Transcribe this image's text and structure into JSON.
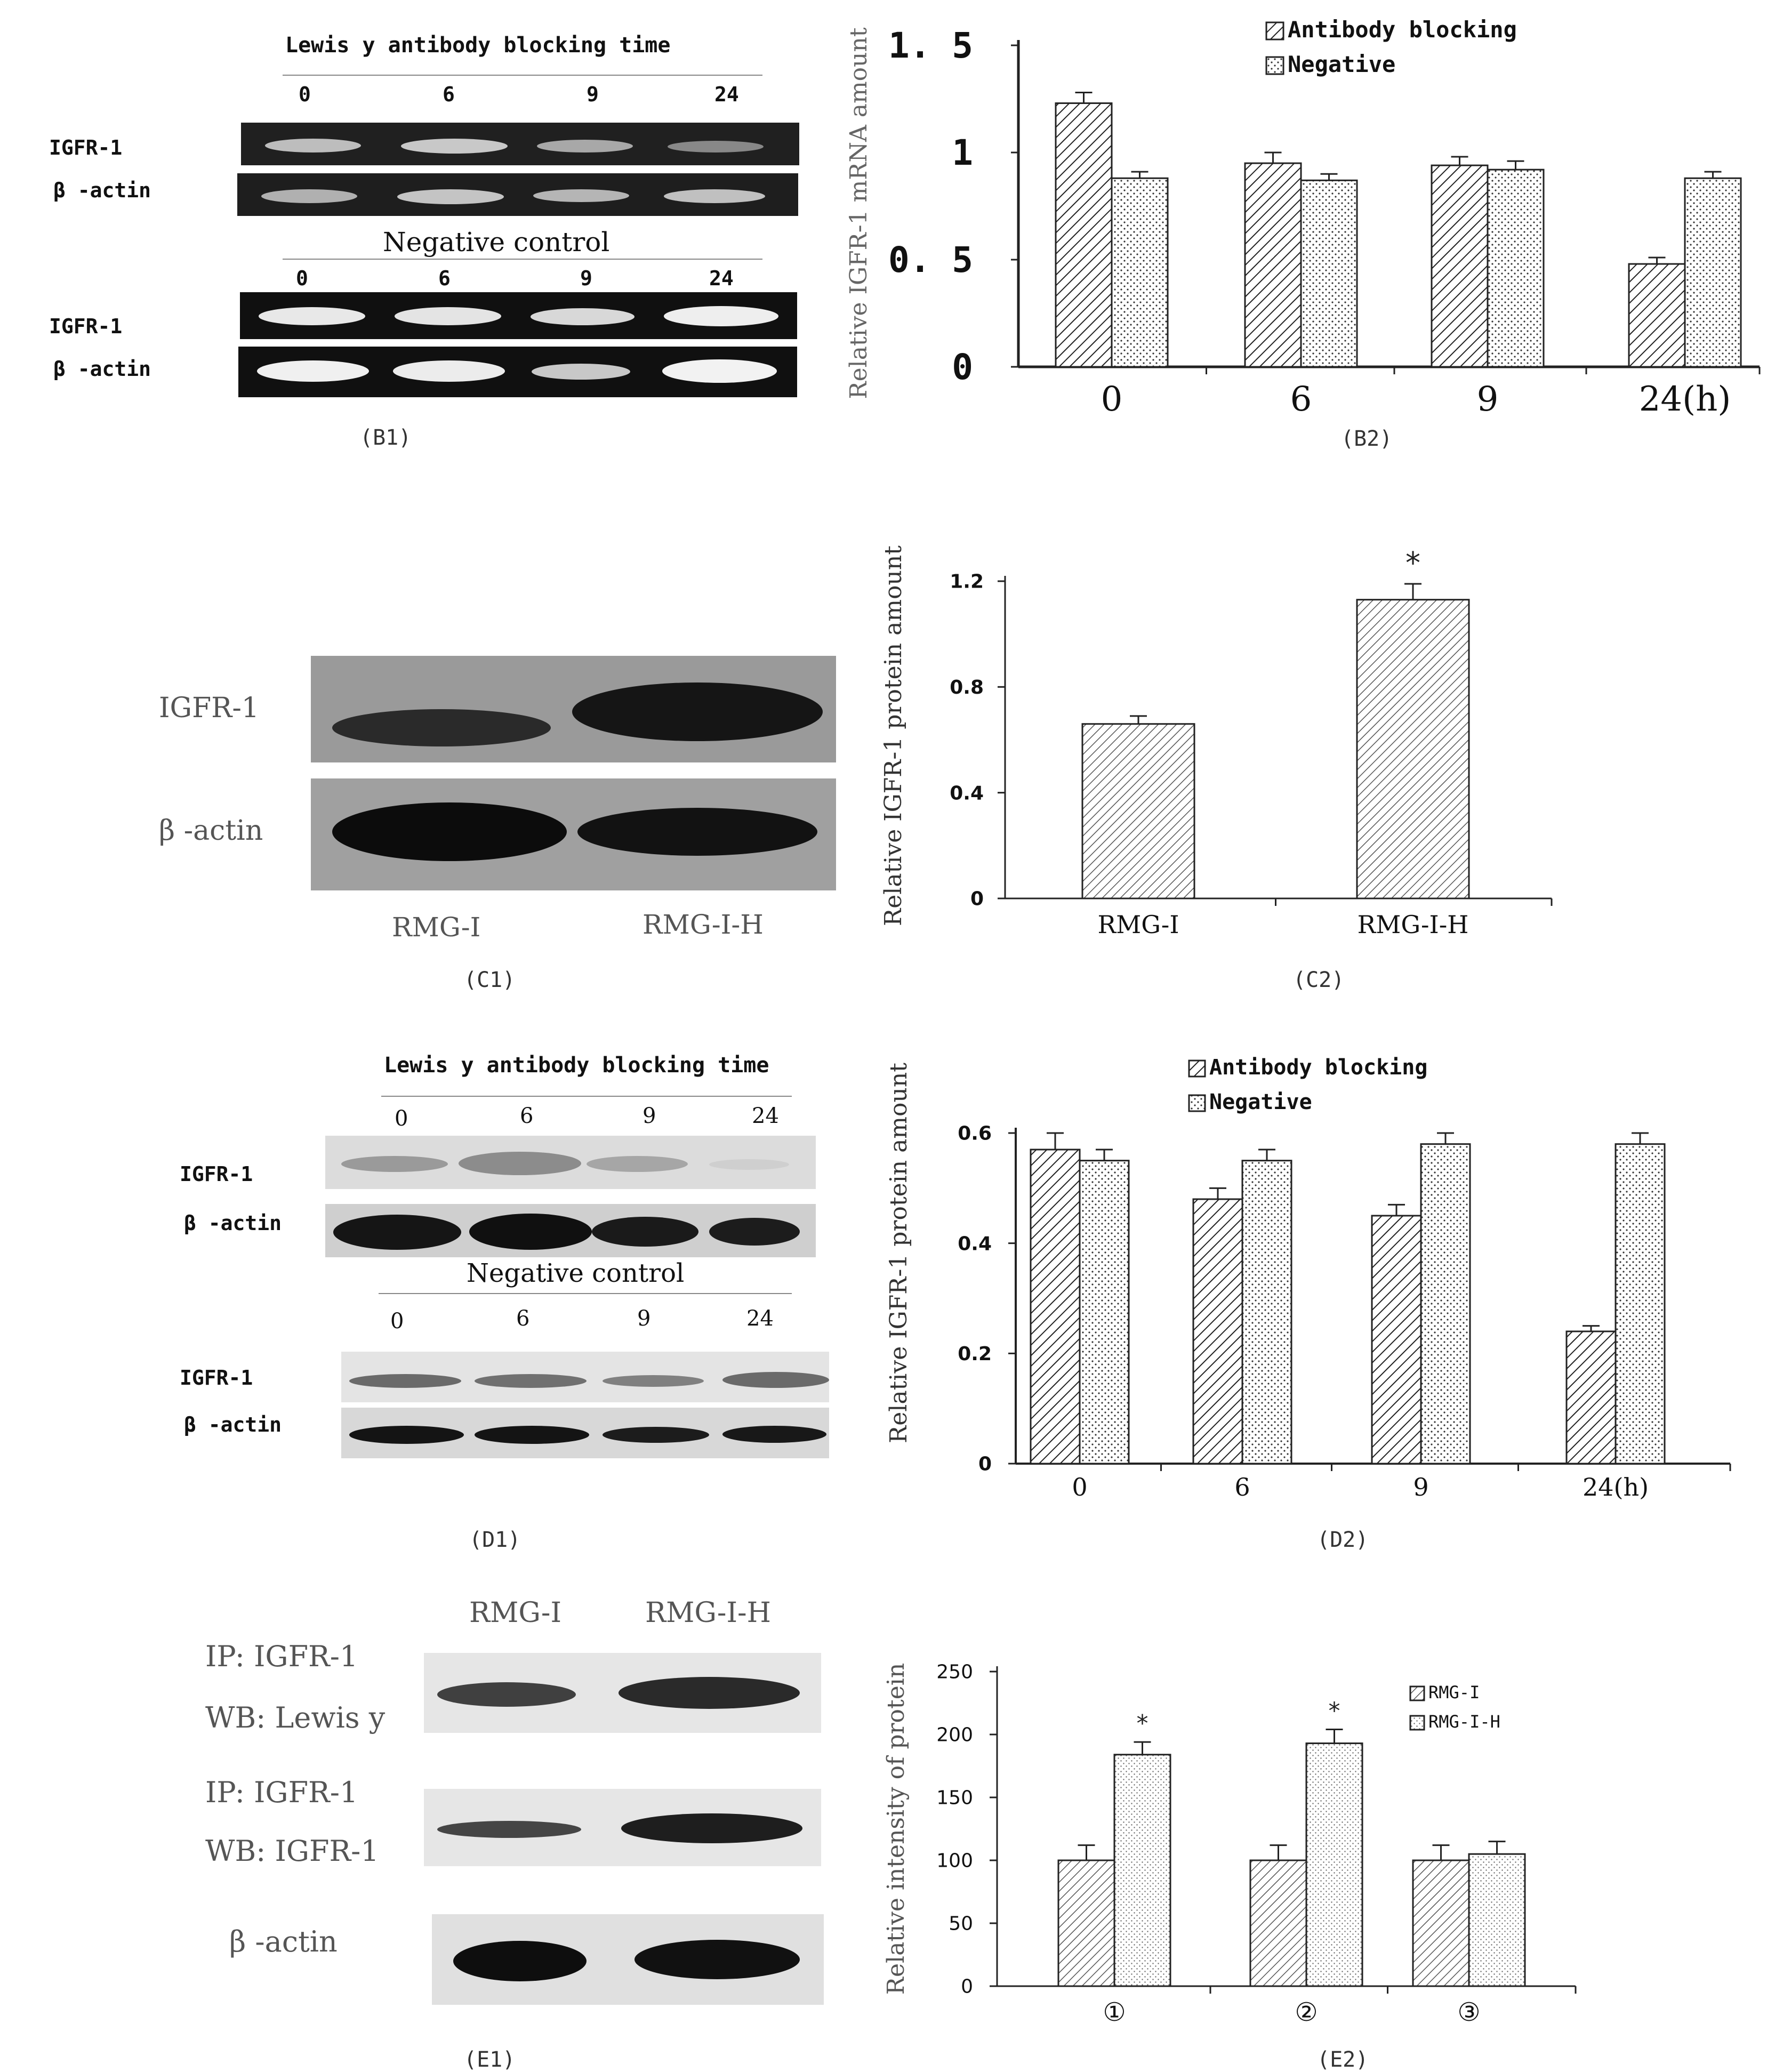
{
  "panelB1": {
    "header": "Lewis y antibody blocking time",
    "times": [
      "0",
      "6",
      "9",
      "24"
    ],
    "rows": [
      "IGFR-1",
      "β -actin"
    ],
    "negative_header": "Negative control",
    "neg_times": [
      "0",
      "6",
      "9",
      "24"
    ],
    "neg_rows": [
      "IGFR-1",
      "β -actin"
    ],
    "caption": "(B1)"
  },
  "panelC1": {
    "rows": [
      "IGFR-1",
      "β -actin"
    ],
    "lanes": [
      "RMG-I",
      "RMG-I-H"
    ],
    "caption": "(C1)"
  },
  "panelD1": {
    "header": "Lewis y antibody blocking time",
    "times": [
      "0",
      "6",
      "9",
      "24"
    ],
    "rows": [
      "IGFR-1",
      "β -actin"
    ],
    "negative_header": "Negative control",
    "neg_times": [
      "0",
      "6",
      "9",
      "24"
    ],
    "neg_rows": [
      "IGFR-1",
      "β -actin"
    ],
    "caption": "(D1)"
  },
  "panelE1": {
    "lanes": [
      "RMG-I",
      "RMG-I-H"
    ],
    "row1_line1": "IP: IGFR-1",
    "row1_line2": "WB: Lewis y",
    "row2_line1": "IP: IGFR-1",
    "row2_line2": "WB: IGFR-1",
    "row3": "β -actin",
    "caption": "(E1)"
  },
  "chart_data": [
    {
      "id": "B2",
      "type": "bar",
      "caption": "(B2)",
      "ylabel": "Relative IGFR-1 mRNA amount",
      "categories": [
        "0",
        "6",
        "9",
        "24(h)"
      ],
      "ylim": [
        0,
        1.5
      ],
      "yticks": [
        "0",
        "0. 5",
        "1",
        "1. 5"
      ],
      "legend_position": "top-right",
      "series": [
        {
          "name": "Antibody blocking",
          "pattern": "hatch",
          "values": [
            1.23,
            0.95,
            0.94,
            0.48
          ],
          "errors": [
            0.05,
            0.05,
            0.04,
            0.03
          ]
        },
        {
          "name": "Negative",
          "pattern": "dots",
          "values": [
            0.88,
            0.87,
            0.92,
            0.88
          ],
          "errors": [
            0.03,
            0.03,
            0.04,
            0.03
          ]
        }
      ]
    },
    {
      "id": "C2",
      "type": "bar",
      "caption": "(C2)",
      "ylabel": "Relative IGFR-1 protein amount",
      "categories": [
        "RMG-I",
        "RMG-I-H"
      ],
      "ylim": [
        0,
        1.2
      ],
      "yticks": [
        "0",
        "0.4",
        "0.8",
        "1.2"
      ],
      "series": [
        {
          "name": "",
          "pattern": "hatch",
          "values": [
            0.66,
            1.13
          ],
          "errors": [
            0.03,
            0.06
          ]
        }
      ],
      "annotations": [
        "",
        "*"
      ]
    },
    {
      "id": "D2",
      "type": "bar",
      "caption": "(D2)",
      "ylabel": "Relative IGFR-1 protein amount",
      "categories": [
        "0",
        "6",
        "9",
        "24(h)"
      ],
      "ylim": [
        0,
        0.6
      ],
      "yticks": [
        "0",
        "0.2",
        "0.4",
        "0.6"
      ],
      "legend_position": "top-right",
      "series": [
        {
          "name": "Antibody blocking",
          "pattern": "hatch",
          "values": [
            0.57,
            0.48,
            0.45,
            0.24
          ],
          "errors": [
            0.03,
            0.02,
            0.02,
            0.01
          ]
        },
        {
          "name": "Negative",
          "pattern": "dots",
          "values": [
            0.55,
            0.55,
            0.58,
            0.58
          ],
          "errors": [
            0.02,
            0.02,
            0.02,
            0.02
          ]
        }
      ]
    },
    {
      "id": "E2",
      "type": "bar",
      "caption": "(E2)",
      "ylabel": "Relative intensity of protein",
      "categories": [
        "①",
        "②",
        "③"
      ],
      "ylim": [
        0,
        250
      ],
      "yticks": [
        "0",
        "50",
        "100",
        "150",
        "200",
        "250"
      ],
      "legend_position": "top-right",
      "series": [
        {
          "name": "RMG-I",
          "pattern": "hatch",
          "values": [
            100,
            100,
            100
          ],
          "errors": [
            12,
            12,
            12
          ]
        },
        {
          "name": "RMG-I-H",
          "pattern": "dots",
          "values": [
            184,
            193,
            105
          ],
          "errors": [
            10,
            11,
            10
          ]
        }
      ],
      "annotations": [
        "*",
        "*",
        ""
      ]
    }
  ]
}
